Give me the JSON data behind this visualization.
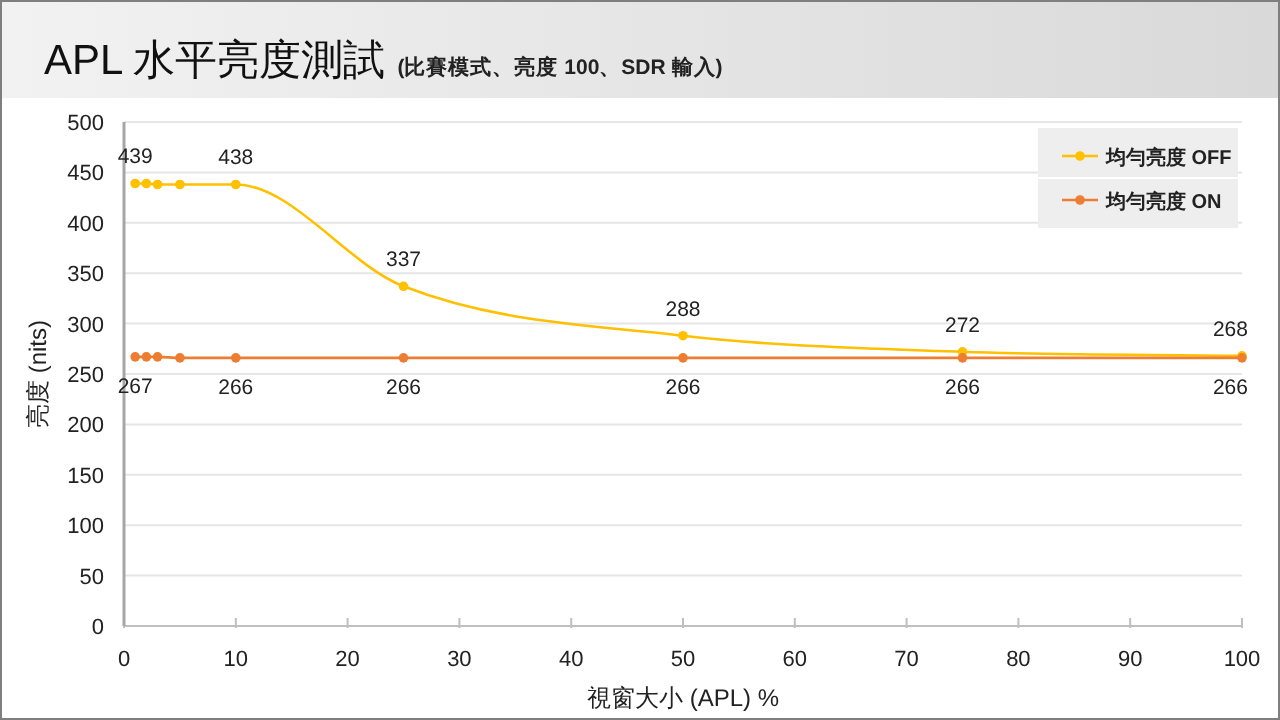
{
  "chart_data": {
    "type": "line",
    "title": "APL 水平亮度測試",
    "subtitle": "(比賽模式、亮度 100、SDR 輸入)",
    "xlabel": "視窗大小 (APL) %",
    "ylabel": "亮度 (nits)",
    "x": [
      1,
      2,
      3,
      5,
      10,
      25,
      50,
      75,
      100
    ],
    "series": [
      {
        "name": "均勻亮度 OFF",
        "color": "#ffc000",
        "values": [
          439,
          439,
          438,
          438,
          438,
          337,
          288,
          272,
          268
        ],
        "value_labels": [
          "439",
          null,
          null,
          null,
          "438",
          "337",
          "288",
          "272",
          "268"
        ]
      },
      {
        "name": "均勻亮度 ON",
        "color": "#ed7d31",
        "values": [
          267,
          267,
          267,
          266,
          266,
          266,
          266,
          266,
          266
        ],
        "value_labels": [
          "267",
          null,
          null,
          null,
          "266",
          "266",
          "266",
          "266",
          "266"
        ]
      }
    ],
    "xlim": [
      0,
      100
    ],
    "xticks": [
      0,
      10,
      20,
      30,
      40,
      50,
      60,
      70,
      80,
      90,
      100
    ],
    "ylim": [
      0,
      500
    ],
    "yticks": [
      0,
      50,
      100,
      150,
      200,
      250,
      300,
      350,
      400,
      450,
      500
    ],
    "grid": "y",
    "legend": "top right",
    "marker": "circle",
    "line_style": "solid"
  }
}
